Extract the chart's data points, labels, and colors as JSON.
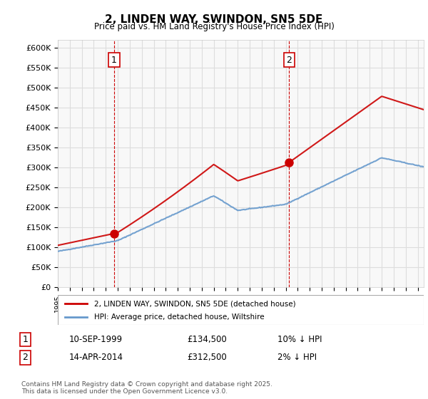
{
  "title": "2, LINDEN WAY, SWINDON, SN5 5DE",
  "subtitle": "Price paid vs. HM Land Registry's House Price Index (HPI)",
  "ylabel_ticks": [
    "£0",
    "£50K",
    "£100K",
    "£150K",
    "£200K",
    "£250K",
    "£300K",
    "£350K",
    "£400K",
    "£450K",
    "£500K",
    "£550K",
    "£600K"
  ],
  "ylim": [
    0,
    620000
  ],
  "sale1_year": 1999.7,
  "sale1_price": 134500,
  "sale1_label": "1",
  "sale2_year": 2014.28,
  "sale2_price": 312500,
  "sale2_label": "2",
  "legend_line1": "2, LINDEN WAY, SWINDON, SN5 5DE (detached house)",
  "legend_line2": "HPI: Average price, detached house, Wiltshire",
  "table_row1": [
    "1",
    "10-SEP-1999",
    "£134,500",
    "10% ↓ HPI"
  ],
  "table_row2": [
    "2",
    "14-APR-2014",
    "£312,500",
    "2% ↓ HPI"
  ],
  "footnote": "Contains HM Land Registry data © Crown copyright and database right 2025.\nThis data is licensed under the Open Government Licence v3.0.",
  "line_color_red": "#cc0000",
  "line_color_blue": "#6699cc",
  "grid_color": "#dddddd",
  "background_color": "#ffffff"
}
